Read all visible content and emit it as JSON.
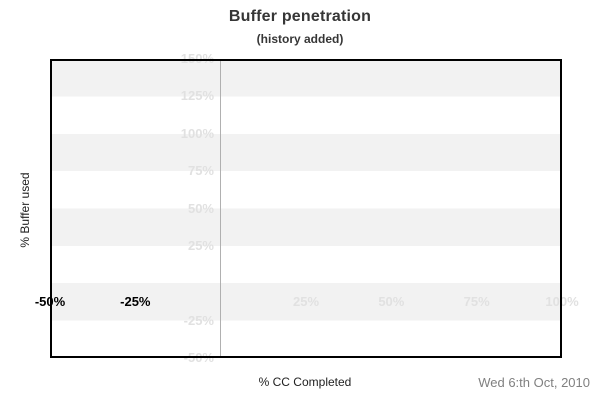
{
  "colors": {
    "band": "#f2f2f2",
    "faint_label": "#e1e1e1",
    "dark_label": "#000000",
    "zero_line": "#b0b0b0",
    "border": "#000000",
    "muted_text": "#808080"
  },
  "footer": {
    "date": "Wed 6:th Oct, 2010"
  },
  "chart_data": {
    "type": "line",
    "title": "Buffer penetration",
    "subtitle": "(history added)",
    "xlabel": "% CC Completed",
    "ylabel": "% Buffer used",
    "xlim": [
      -50,
      100
    ],
    "ylim": [
      -50,
      150
    ],
    "x_ticks": [
      {
        "value": -50,
        "label": "-50%",
        "emphasis": "dark"
      },
      {
        "value": -25,
        "label": "-25%",
        "emphasis": "dark"
      },
      {
        "value": 25,
        "label": "25%",
        "emphasis": "faint"
      },
      {
        "value": 50,
        "label": "50%",
        "emphasis": "faint"
      },
      {
        "value": 75,
        "label": "75%",
        "emphasis": "faint"
      },
      {
        "value": 100,
        "label": "100%",
        "emphasis": "faint"
      }
    ],
    "y_ticks": [
      {
        "value": 150,
        "label": "150%"
      },
      {
        "value": 125,
        "label": "125%"
      },
      {
        "value": 100,
        "label": "100%"
      },
      {
        "value": 75,
        "label": "75%"
      },
      {
        "value": 50,
        "label": "50%"
      },
      {
        "value": 25,
        "label": "25%"
      },
      {
        "value": -25,
        "label": "-25%"
      },
      {
        "value": -50,
        "label": "-50%"
      }
    ],
    "series": [],
    "grid": {
      "horizontal_bands": true,
      "vertical_zero_line": true
    },
    "legend": false
  }
}
